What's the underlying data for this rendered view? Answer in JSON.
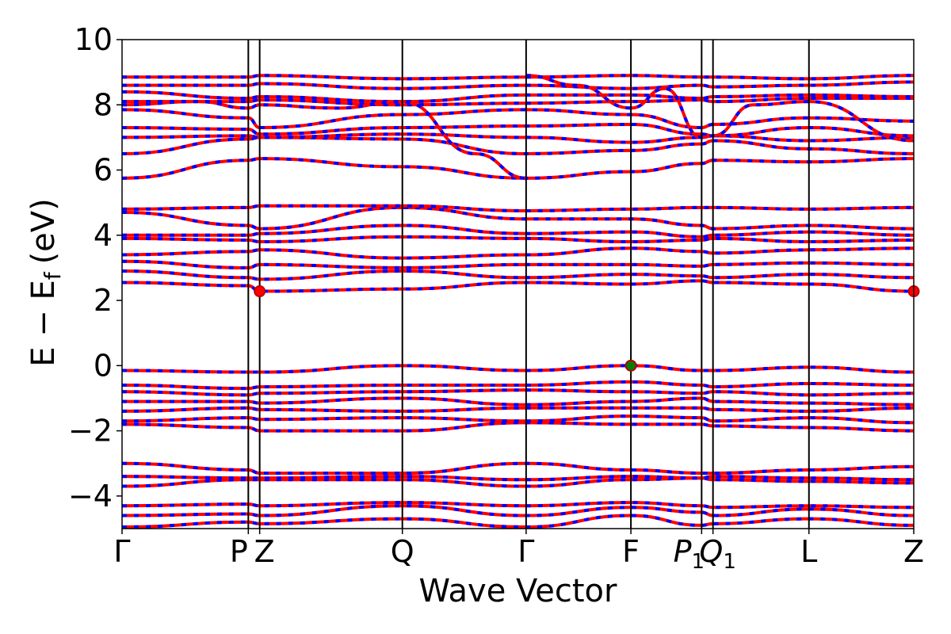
{
  "chart_data": {
    "type": "line",
    "title": "",
    "xlabel": "Wave Vector",
    "ylabel": "E − E",
    "ylabel_sub": "f",
    "ylabel_unit": "(eV)",
    "ylim": [
      -5,
      10
    ],
    "yticks": [
      10,
      8,
      6,
      4,
      2,
      0,
      -2,
      -4
    ],
    "ytick_labels": [
      "10",
      "8",
      "6",
      "4",
      "2",
      "0",
      "−2",
      "−4"
    ],
    "grid": false,
    "legend": "none",
    "kpoints": [
      {
        "label": "Γ",
        "x": 0.0
      },
      {
        "label": "P",
        "x": 1.0
      },
      {
        "label": "Z",
        "x": 1.09
      },
      {
        "label": "Q",
        "x": 2.22
      },
      {
        "label": "Γ",
        "x": 3.2
      },
      {
        "label": "F",
        "x": 4.03
      },
      {
        "label": "P",
        "sub": "1",
        "x": 4.59
      },
      {
        "label": "Q",
        "sub": "1",
        "x": 4.68
      },
      {
        "label": "L",
        "x": 5.44
      },
      {
        "label": "Z",
        "x": 6.27
      }
    ],
    "colors": {
      "band_primary": "#ff0000",
      "band_secondary": "#0000ff",
      "vbm": "#008000",
      "cbm": "#ff0000"
    },
    "markers": [
      {
        "name": "cbm",
        "x": 1.09,
        "y": 2.28
      },
      {
        "name": "cbm",
        "x": 6.27,
        "y": 2.28
      },
      {
        "name": "vbm",
        "x": 4.03,
        "y": 0.0
      }
    ],
    "bands": [
      {
        "x": [
          0,
          1,
          1.09,
          2.22,
          3.2,
          4.03,
          4.59,
          4.68,
          5.44,
          6.27
        ],
        "y": [
          -4.95,
          -4.8,
          -4.85,
          -4.7,
          -4.95,
          -4.6,
          -4.9,
          -4.85,
          -4.7,
          -4.9
        ]
      },
      {
        "x": [
          0,
          1,
          1.09,
          2.22,
          3.2,
          4.03,
          4.59,
          4.68,
          5.44,
          6.27
        ],
        "y": [
          -4.6,
          -4.55,
          -4.6,
          -4.3,
          -4.6,
          -4.35,
          -4.5,
          -4.6,
          -4.4,
          -4.6
        ]
      },
      {
        "x": [
          0,
          1,
          1.09,
          2.22,
          3.2,
          4.03,
          4.59,
          4.68,
          5.44,
          6.27
        ],
        "y": [
          -4.3,
          -4.25,
          -4.3,
          -4.2,
          -4.3,
          -4.2,
          -4.3,
          -4.35,
          -4.3,
          -4.35
        ]
      },
      {
        "x": [
          0,
          1,
          1.09,
          2.22,
          3.2,
          4.03,
          4.59,
          4.68,
          5.44,
          6.27
        ],
        "y": [
          -3.7,
          -3.5,
          -3.5,
          -3.5,
          -3.7,
          -3.5,
          -3.45,
          -3.5,
          -3.55,
          -3.6
        ]
      },
      {
        "x": [
          0,
          1,
          1.09,
          2.22,
          3.2,
          4.03,
          4.59,
          4.68,
          5.44,
          6.27
        ],
        "y": [
          -3.4,
          -3.45,
          -3.45,
          -3.4,
          -3.5,
          -3.4,
          -3.45,
          -3.4,
          -3.45,
          -3.5
        ]
      },
      {
        "x": [
          0,
          1,
          1.09,
          2.22,
          3.2,
          4.03,
          4.59,
          4.68,
          5.44,
          6.27
        ],
        "y": [
          -3.0,
          -3.2,
          -3.3,
          -3.3,
          -3.0,
          -3.2,
          -3.3,
          -3.3,
          -3.2,
          -3.1
        ]
      },
      {
        "x": [
          0,
          1,
          1.09,
          2.22,
          3.2,
          4.03,
          4.59,
          4.68,
          5.44,
          6.27
        ],
        "y": [
          -1.8,
          -1.9,
          -2.0,
          -2.0,
          -1.75,
          -1.8,
          -1.8,
          -1.85,
          -1.9,
          -2.0
        ]
      },
      {
        "x": [
          0,
          1,
          1.09,
          2.22,
          3.2,
          4.03,
          4.59,
          4.68,
          5.44,
          6.27
        ],
        "y": [
          -1.7,
          -1.6,
          -1.65,
          -1.6,
          -1.7,
          -1.55,
          -1.6,
          -1.7,
          -1.6,
          -1.75
        ]
      },
      {
        "x": [
          0,
          1,
          1.09,
          2.22,
          3.2,
          4.03,
          4.59,
          4.68,
          5.44,
          6.27
        ],
        "y": [
          -1.4,
          -1.3,
          -1.35,
          -1.4,
          -1.3,
          -1.3,
          -1.3,
          -1.35,
          -1.4,
          -1.3
        ]
      },
      {
        "x": [
          0,
          1,
          1.09,
          2.22,
          3.2,
          4.03,
          4.59,
          4.68,
          5.44,
          6.27
        ],
        "y": [
          -1.1,
          -1.1,
          -1.15,
          -1.0,
          -1.2,
          -1.1,
          -1.0,
          -1.1,
          -1.15,
          -1.2
        ]
      },
      {
        "x": [
          0,
          1,
          1.09,
          2.22,
          3.2,
          4.03,
          4.59,
          4.68,
          5.44,
          6.27
        ],
        "y": [
          -0.8,
          -0.9,
          -0.85,
          -0.8,
          -0.75,
          -0.8,
          -0.85,
          -0.8,
          -0.9,
          -0.85
        ]
      },
      {
        "x": [
          0,
          1,
          1.09,
          2.22,
          3.2,
          4.03,
          4.59,
          4.68,
          5.44,
          6.27
        ],
        "y": [
          -0.6,
          -0.7,
          -0.65,
          -0.6,
          -0.6,
          -0.5,
          -0.6,
          -0.65,
          -0.55,
          -0.6
        ]
      },
      {
        "x": [
          0,
          1,
          1.09,
          2.22,
          3.2,
          4.03,
          4.59,
          4.68,
          5.44,
          6.27
        ],
        "y": [
          -0.15,
          -0.2,
          -0.2,
          0.0,
          -0.15,
          0.0,
          -0.15,
          -0.15,
          -0.05,
          -0.2
        ]
      },
      {
        "x": [
          0,
          1,
          1.09,
          2.22,
          3.2,
          4.03,
          4.59,
          4.68,
          5.44,
          6.27
        ],
        "y": [
          2.55,
          2.45,
          2.28,
          2.35,
          2.55,
          2.5,
          2.6,
          2.55,
          2.5,
          2.28
        ]
      },
      {
        "x": [
          0,
          1,
          1.09,
          2.22,
          3.2,
          4.03,
          4.59,
          4.68,
          5.44,
          6.27
        ],
        "y": [
          2.9,
          2.7,
          2.65,
          2.9,
          2.7,
          2.8,
          2.75,
          2.7,
          2.8,
          2.7
        ]
      },
      {
        "x": [
          0,
          1,
          1.09,
          2.22,
          3.2,
          4.03,
          4.59,
          4.68,
          5.44,
          6.27
        ],
        "y": [
          3.2,
          3.0,
          3.1,
          3.0,
          3.1,
          3.1,
          3.05,
          3.1,
          3.15,
          3.1
        ]
      },
      {
        "x": [
          0,
          1,
          1.09,
          2.22,
          3.2,
          4.03,
          4.59,
          4.68,
          5.44,
          6.27
        ],
        "y": [
          3.4,
          3.5,
          3.55,
          3.3,
          3.4,
          3.6,
          3.5,
          3.45,
          3.55,
          3.6
        ]
      },
      {
        "x": [
          0,
          1,
          1.09,
          2.22,
          3.2,
          4.03,
          4.59,
          4.68,
          5.44,
          6.27
        ],
        "y": [
          3.9,
          3.85,
          3.8,
          3.95,
          3.9,
          3.8,
          3.85,
          3.9,
          3.8,
          3.85
        ]
      },
      {
        "x": [
          0,
          1,
          1.09,
          2.22,
          3.2,
          4.03,
          4.59,
          4.68,
          5.44,
          6.27
        ],
        "y": [
          4.0,
          4.0,
          4.05,
          4.3,
          4.05,
          4.1,
          3.95,
          4.0,
          4.1,
          4.0
        ]
      },
      {
        "x": [
          0,
          1,
          1.09,
          2.22,
          3.2,
          4.03,
          4.59,
          4.68,
          5.44,
          6.27
        ],
        "y": [
          4.7,
          4.3,
          4.2,
          4.85,
          4.5,
          4.5,
          4.3,
          4.2,
          4.3,
          4.2
        ]
      },
      {
        "x": [
          0,
          1,
          1.09,
          2.22,
          3.2,
          4.03,
          4.59,
          4.68,
          5.44,
          6.27
        ],
        "y": [
          4.8,
          4.85,
          4.9,
          4.9,
          4.75,
          4.8,
          4.85,
          4.85,
          4.8,
          4.85
        ]
      },
      {
        "x": [
          0,
          1,
          1.09,
          2.22,
          3.2,
          4.03,
          4.59,
          4.68,
          5.44,
          6.27
        ],
        "y": [
          5.75,
          6.3,
          6.35,
          6.1,
          5.75,
          5.95,
          6.2,
          6.3,
          6.25,
          6.35
        ]
      },
      {
        "x": [
          0,
          1,
          1.09,
          2.22,
          3.2,
          4.03,
          4.59,
          4.68,
          5.44,
          6.27
        ],
        "y": [
          6.5,
          6.95,
          7.0,
          6.95,
          6.5,
          6.6,
          6.8,
          6.9,
          6.65,
          6.5
        ]
      },
      {
        "x": [
          0,
          1,
          1.09,
          2.22,
          3.2,
          4.03,
          4.59,
          4.68,
          5.44,
          6.27
        ],
        "y": [
          7.0,
          7.05,
          7.0,
          7.1,
          7.0,
          6.85,
          7.0,
          7.05,
          6.9,
          7.0
        ]
      },
      {
        "x": [
          0,
          1,
          1.09,
          2.22,
          3.2,
          4.03,
          4.59,
          4.68,
          5.44,
          6.27
        ],
        "y": [
          7.3,
          7.25,
          7.1,
          7.3,
          7.35,
          7.4,
          7.1,
          7.05,
          7.3,
          7.05
        ]
      },
      {
        "x": [
          0,
          1,
          1.09,
          2.22,
          3.2,
          4.03,
          4.59,
          4.68,
          5.44,
          6.27
        ],
        "y": [
          7.85,
          7.6,
          7.3,
          7.7,
          7.85,
          7.7,
          7.3,
          7.4,
          7.6,
          7.5
        ]
      },
      {
        "x": [
          0,
          1,
          1.09,
          2.22,
          3.2,
          4.03,
          4.59,
          4.68,
          5.44,
          6.27
        ],
        "y": [
          8.1,
          8.1,
          8.15,
          8.0,
          8.05,
          8.1,
          8.15,
          8.1,
          8.2,
          8.2
        ]
      },
      {
        "x": [
          0,
          1,
          1.09,
          2.22,
          3.2,
          4.03,
          4.59,
          4.68,
          5.44,
          6.27
        ],
        "y": [
          8.4,
          8.2,
          8.25,
          8.1,
          8.3,
          8.3,
          8.2,
          8.25,
          8.3,
          8.25
        ]
      },
      {
        "x": [
          0,
          1,
          1.09,
          2.22,
          3.2,
          4.03,
          4.59,
          4.68,
          5.44,
          6.27
        ],
        "y": [
          8.6,
          8.6,
          8.65,
          8.5,
          8.6,
          8.5,
          8.6,
          8.55,
          8.6,
          8.7
        ]
      },
      {
        "x": [
          0,
          1,
          1.09,
          2.22,
          3.2,
          4.03,
          4.59,
          4.68,
          5.44,
          6.27
        ],
        "y": [
          8.85,
          8.85,
          8.9,
          8.8,
          8.85,
          8.9,
          8.85,
          8.85,
          8.8,
          8.9
        ]
      },
      {
        "x": [
          0,
          0.6,
          1,
          1.09,
          1.7,
          2.22,
          2.8,
          3.2
        ],
        "y": [
          8.0,
          8.1,
          7.9,
          8.0,
          7.9,
          8.1,
          6.5,
          5.75
        ]
      },
      {
        "x": [
          3.2,
          3.6,
          4.03,
          4.3,
          4.59,
          4.68,
          5.0,
          5.44,
          6.27
        ],
        "y": [
          8.9,
          8.6,
          7.9,
          8.5,
          7.0,
          7.05,
          8.0,
          8.1,
          6.9
        ]
      }
    ]
  }
}
